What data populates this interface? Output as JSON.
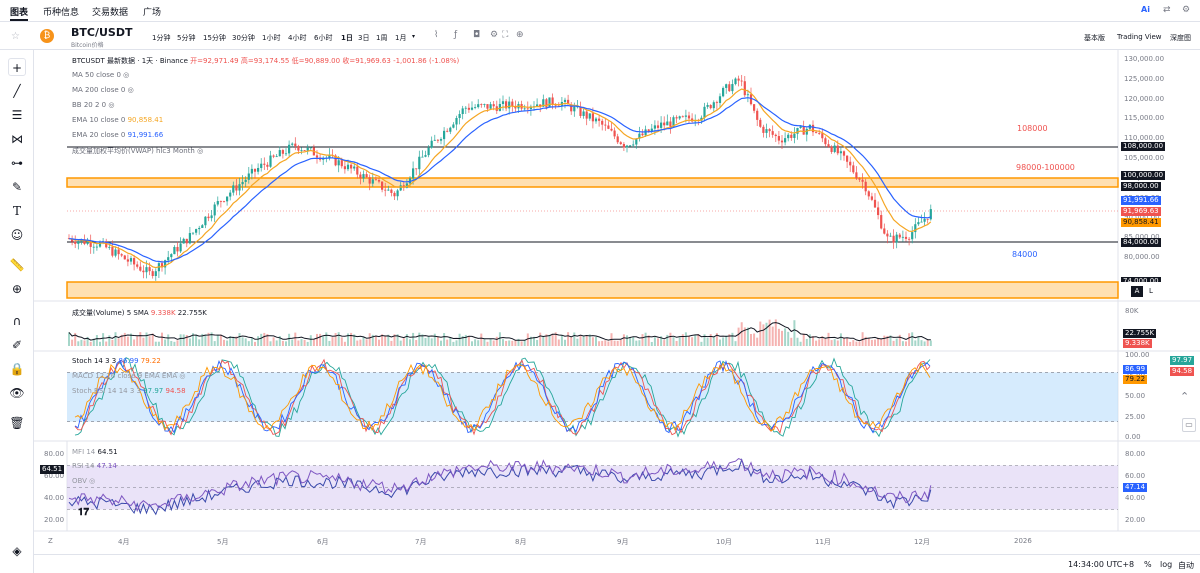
{
  "nav": {
    "items": [
      "图表",
      "币种信息",
      "交易数据",
      "广场"
    ],
    "ai_label": "Ai"
  },
  "symbol": {
    "title": "BTC/USDT",
    "subtitle": "Bitcoin价格"
  },
  "toolbar": {
    "timeframes": [
      "1分钟",
      "5分钟",
      "15分钟",
      "30分钟",
      "1小时",
      "4小时",
      "6小时",
      "1日",
      "3日",
      "1周",
      "1月"
    ],
    "active_timeframe": "1日",
    "views": [
      "基本版",
      "Trading View",
      "深度图"
    ]
  },
  "ohlc_header": {
    "title": "BTCUSDT 最新数据 · 1天 · Binance",
    "open": "开=92,971.49",
    "high": "高=93,174.55",
    "low": "低=90,889.00",
    "close": "收=91,969.63",
    "change": "-1,001.86 (-1.08%)"
  },
  "indicators": {
    "ma50": "MA 50 close 0",
    "ma200": "MA 200 close 0",
    "bb": "BB 20 2 0",
    "ema10": {
      "label": "EMA 10 close 0",
      "value": "90,858.41"
    },
    "ema20": {
      "label": "EMA 20 close 0",
      "value": "91,991.66"
    },
    "vwap": "成交量加权平均价(VWAP) hlc3 Month"
  },
  "price_axis": [
    "130,000.00",
    "125,000.00",
    "120,000.00",
    "115,000.00",
    "110,000.00",
    "105,000.00",
    "100,000.00",
    "95,000.00",
    "90,000.00",
    "85,000.00",
    "80,000.00"
  ],
  "levels": {
    "l108": "108,000.00",
    "l100": "100,000.00",
    "l98": "98,000.00",
    "l84": "84,000.00",
    "l74": "74,000.00"
  },
  "price_tags": {
    "ema20": "91,991.66",
    "close": "91,969.63",
    "ema10": "90,858.41"
  },
  "zone_labels": {
    "z108": "108000",
    "z98": "98000-100000",
    "z84": "84000"
  },
  "volume": {
    "label": "成交量(Volume) 5 SMA",
    "v1": "9.338K",
    "v2": "22.755K",
    "axis": "80K",
    "tag1": "22.755K",
    "tag2": "9.338K"
  },
  "stoch": {
    "label": "Stoch 14 3 3",
    "k": "86.99",
    "d": "79.22",
    "macd": "MACD 12 26 close 9 EMA EMA",
    "stochrsi": "Stoch RSI 14 14 3 3",
    "srk": "97.97",
    "srd": "94.58",
    "axis": [
      "100.00",
      "75.00",
      "50.00",
      "25.00",
      "0.00"
    ],
    "tags": [
      "97.97",
      "86.99",
      "79.22",
      "94.58"
    ]
  },
  "rsi": {
    "mfi": "MFI 14",
    "mfi_val": "64.51",
    "rsi": "RSI 14",
    "rsi_val": "47.14",
    "obv": "OBV",
    "axis": [
      "80.00",
      "60.00",
      "40.00",
      "20.00"
    ],
    "left_axis": [
      "80.00",
      "60.00",
      "40.00",
      "20.00"
    ],
    "left_tag": "64.51",
    "right_tag": "47.14"
  },
  "time_axis": [
    "4月",
    "5月",
    "6月",
    "7月",
    "8月",
    "9月",
    "10月",
    "11月",
    "12月",
    "2026"
  ],
  "bottom": {
    "time": "14:34:00 UTC+8",
    "percent": "%",
    "log": "log",
    "auto": "自动"
  },
  "colors": {
    "up": "#26a69a",
    "down": "#ef5350",
    "ema10": "#f5a623",
    "ema20": "#2962ff",
    "zone": "#ff9800",
    "zonefill": "#ffe0b2",
    "stochfill": "#bbdefb",
    "rsifill": "#e1d7f5"
  }
}
